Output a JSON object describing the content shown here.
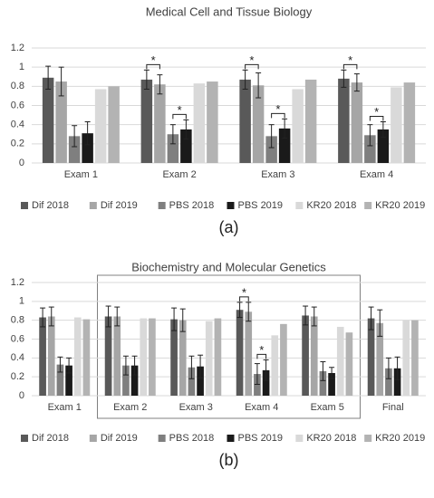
{
  "chart_data": [
    {
      "type": "bar",
      "title": "Medical Cell and Tissue Biology",
      "caption": "(a)",
      "categories": [
        "Exam 1",
        "Exam 2",
        "Exam 3",
        "Exam 4"
      ],
      "series": [
        {
          "name": "Dif 2018",
          "color": "#595959",
          "values": [
            0.89,
            0.87,
            0.87,
            0.88
          ],
          "errors": [
            0.12,
            0.1,
            0.1,
            0.09
          ]
        },
        {
          "name": "Dif 2019",
          "color": "#a6a6a6",
          "values": [
            0.85,
            0.82,
            0.81,
            0.84
          ],
          "errors": [
            0.15,
            0.1,
            0.13,
            0.09
          ]
        },
        {
          "name": "PBS 2018",
          "color": "#7f7f7f",
          "values": [
            0.28,
            0.3,
            0.28,
            0.29
          ],
          "errors": [
            0.11,
            0.1,
            0.12,
            0.11
          ]
        },
        {
          "name": "PBS 2019",
          "color": "#1a1a1a",
          "values": [
            0.31,
            0.35,
            0.36,
            0.35
          ],
          "errors": [
            0.12,
            0.1,
            0.1,
            0.08
          ]
        },
        {
          "name": "KR20 2018",
          "color": "#d9d9d9",
          "values": [
            0.77,
            0.83,
            0.77,
            0.79
          ]
        },
        {
          "name": "KR20 2019",
          "color": "#b3b3b3",
          "values": [
            0.8,
            0.85,
            0.87,
            0.84
          ]
        }
      ],
      "annotations": [
        {
          "text": "*",
          "category": 1,
          "between": [
            0,
            1
          ]
        },
        {
          "text": "*",
          "category": 1,
          "between": [
            2,
            3
          ]
        },
        {
          "text": "*",
          "category": 2,
          "between": [
            0,
            1
          ]
        },
        {
          "text": "*",
          "category": 2,
          "between": [
            2,
            3
          ]
        },
        {
          "text": "*",
          "category": 3,
          "between": [
            0,
            1
          ]
        },
        {
          "text": "*",
          "category": 3,
          "between": [
            2,
            3
          ]
        }
      ],
      "ylim": [
        0,
        1.2
      ],
      "yticks": [
        0,
        0.2,
        0.4,
        0.6,
        0.8,
        1,
        1.2
      ],
      "grid": true,
      "legend": "bottom"
    },
    {
      "type": "bar",
      "title": "Biochemistry and Molecular Genetics",
      "caption": "(b)",
      "categories": [
        "Exam 1",
        "Exam 2",
        "Exam 3",
        "Exam 4",
        "Exam 5",
        "Final"
      ],
      "series": [
        {
          "name": "Dif 2018",
          "color": "#595959",
          "values": [
            0.83,
            0.84,
            0.81,
            0.91,
            0.85,
            0.82
          ],
          "errors": [
            0.1,
            0.11,
            0.12,
            0.08,
            0.1,
            0.12
          ]
        },
        {
          "name": "Dif 2019",
          "color": "#a6a6a6",
          "values": [
            0.84,
            0.84,
            0.8,
            0.89,
            0.84,
            0.77
          ],
          "errors": [
            0.1,
            0.1,
            0.12,
            0.1,
            0.1,
            0.14
          ]
        },
        {
          "name": "PBS 2018",
          "color": "#7f7f7f",
          "values": [
            0.33,
            0.32,
            0.3,
            0.23,
            0.26,
            0.29
          ],
          "errors": [
            0.08,
            0.1,
            0.12,
            0.11,
            0.1,
            0.11
          ]
        },
        {
          "name": "PBS 2019",
          "color": "#1a1a1a",
          "values": [
            0.32,
            0.32,
            0.31,
            0.27,
            0.24,
            0.29
          ],
          "errors": [
            0.08,
            0.1,
            0.12,
            0.11,
            0.06,
            0.12
          ]
        },
        {
          "name": "KR20 2018",
          "color": "#d9d9d9",
          "values": [
            0.83,
            0.82,
            0.79,
            0.64,
            0.73,
            0.8
          ]
        },
        {
          "name": "KR20 2019",
          "color": "#b3b3b3",
          "values": [
            0.81,
            0.82,
            0.82,
            0.76,
            0.67,
            0.8
          ]
        }
      ],
      "annotations": [
        {
          "text": "*",
          "category": 3,
          "between": [
            0,
            1
          ]
        },
        {
          "text": "*",
          "category": 3,
          "between": [
            2,
            3
          ]
        }
      ],
      "ylim": [
        0,
        1.2
      ],
      "yticks": [
        0,
        0.2,
        0.4,
        0.6,
        0.8,
        1,
        1.2
      ],
      "grid": true,
      "legend": "bottom"
    }
  ]
}
